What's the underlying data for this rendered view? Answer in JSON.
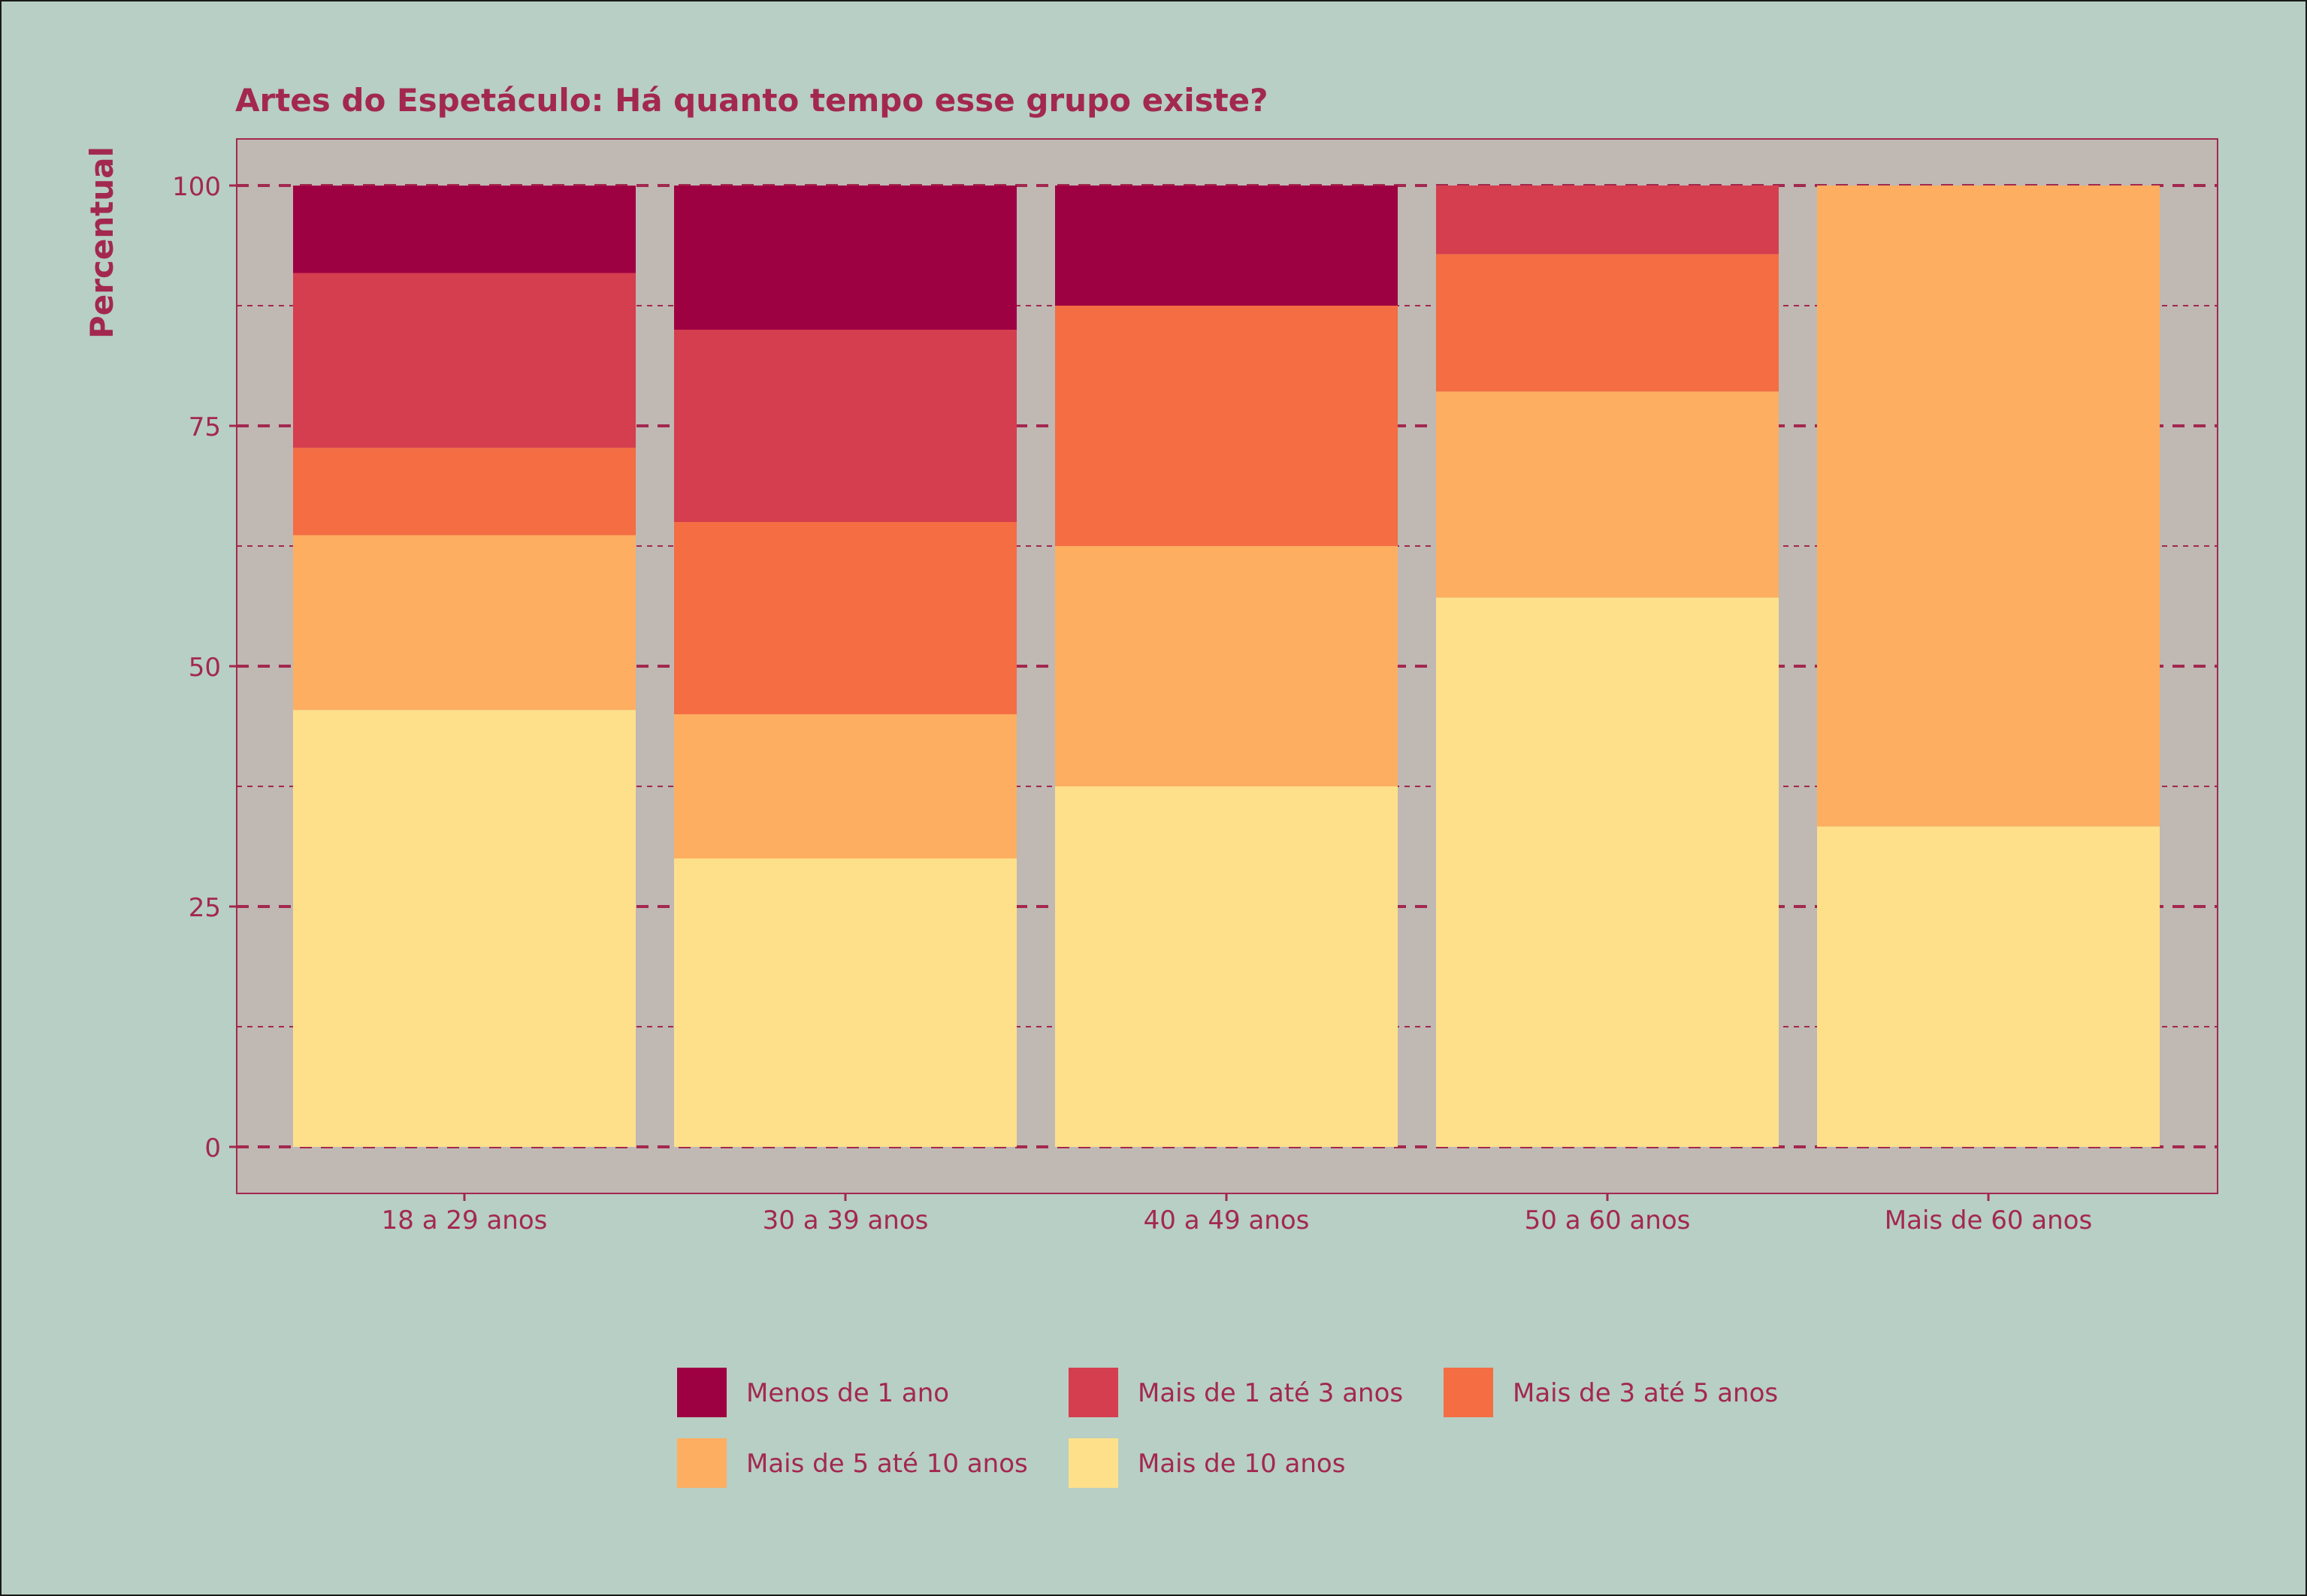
{
  "chart_data": {
    "type": "bar",
    "stacked": true,
    "title": "Artes do Espetáculo: Há quanto tempo esse grupo existe?",
    "xlabel": "",
    "ylabel": "Percentual",
    "ylim": [
      0,
      100
    ],
    "yticks": [
      "0",
      "25",
      "50",
      "75",
      "100"
    ],
    "grid": true,
    "legend_position": "bottom",
    "categories": [
      "18 a 29 anos",
      "30 a 39 anos",
      "40 a 49 anos",
      "50 a 60 anos",
      "Mais de 60 anos"
    ],
    "series": [
      {
        "name": "Mais de 10 anos",
        "color": "#fee08b",
        "values": [
          45.45,
          30.0,
          37.5,
          57.14,
          33.33
        ]
      },
      {
        "name": "Mais de 5 até 10 anos",
        "color": "#fdae61",
        "values": [
          18.18,
          15.0,
          25.0,
          21.43,
          66.67
        ]
      },
      {
        "name": "Mais de 3 até 5 anos",
        "color": "#f46d43",
        "values": [
          9.09,
          20.0,
          25.0,
          14.29,
          0
        ]
      },
      {
        "name": "Mais de 1 até 3 anos",
        "color": "#d53e4f",
        "values": [
          18.18,
          20.0,
          0,
          7.14,
          0
        ]
      },
      {
        "name": "Menos de 1 ano",
        "color": "#9e0142",
        "values": [
          9.09,
          15.0,
          12.5,
          0,
          0
        ]
      }
    ],
    "legend_order": [
      "Menos de 1 ano",
      "Mais de 1 até 3 anos",
      "Mais de 3 até 5 anos",
      "Mais de 5 até 10 anos",
      "Mais de 10 anos"
    ],
    "colors": {
      "background": "#b7cfc4",
      "panel": "#bfb8b3",
      "text": "#a3284f",
      "grid": "#a3284f"
    }
  }
}
